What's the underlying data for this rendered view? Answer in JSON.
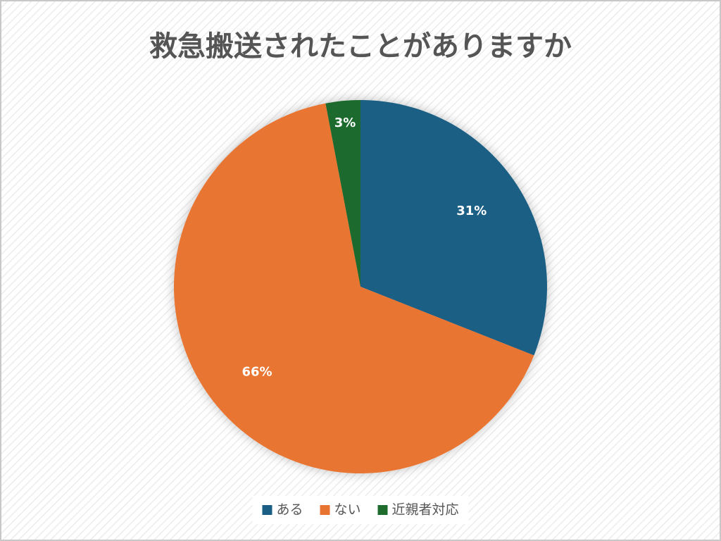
{
  "chart_data": {
    "type": "pie",
    "title": "救急搬送されたことがありますか",
    "categories": [
      "ある",
      "ない",
      "近親者対応"
    ],
    "values": [
      31,
      66,
      3
    ],
    "value_labels": [
      "31%",
      "66%",
      "3%"
    ],
    "colors": [
      "#1a5e84",
      "#e87431",
      "#1e6b2e"
    ],
    "legend": "bottom"
  }
}
